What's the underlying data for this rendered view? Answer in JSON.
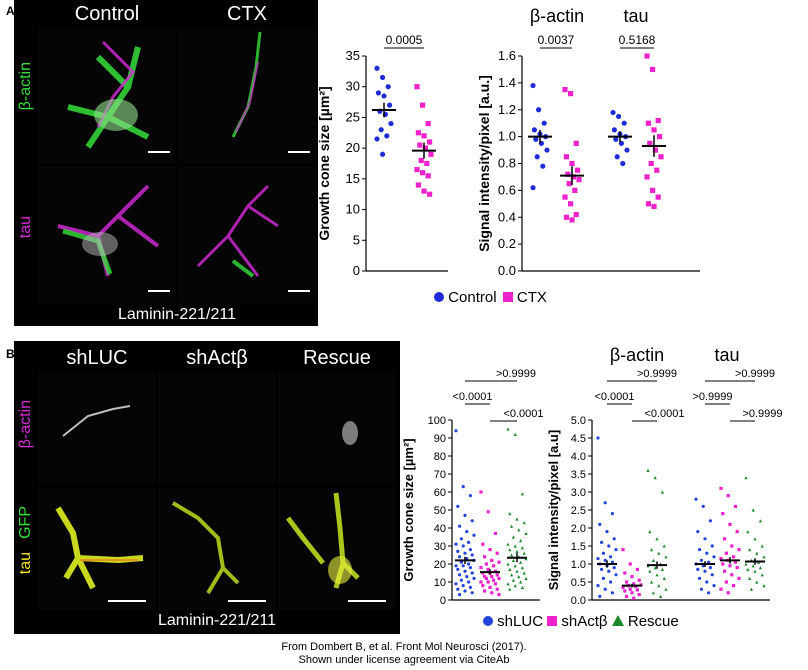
{
  "panel_a": {
    "letter": "A",
    "col_headers": [
      "Control",
      "CTX"
    ],
    "row_labels": [
      "β-actin",
      "tau"
    ],
    "caption": "Laminin-221/211"
  },
  "panel_b": {
    "letter": "B",
    "col_headers": [
      "shLUC",
      "shActβ",
      "Rescue"
    ],
    "row_label_top": "β-actin",
    "row_label_gfp": "GFP",
    "row_label_tau": "tau",
    "caption": "Laminin-221/211"
  },
  "legend_a": {
    "control": "Control",
    "ctx": "CTX"
  },
  "legend_b": {
    "shluc": "shLUC",
    "shact": "shActβ",
    "rescue": "Rescue"
  },
  "colors": {
    "control": "#1f2bd6",
    "ctx": "#ee22cc",
    "shluc": "#2244dd",
    "shact": "#ee22cc",
    "rescue": "#1d8a2a",
    "green": "#35e03a",
    "magenta": "#d52ad8"
  },
  "credit": {
    "line1": "From Dombert B, et al. Front Mol Neurosci (2017).",
    "line2": "Shown under license agreement via CiteAb"
  },
  "chart_data": [
    {
      "type": "scatter",
      "ylabel": "Growth cone size [µm²]",
      "ylim": [
        0,
        35
      ],
      "yticks": [
        0,
        5,
        10,
        15,
        20,
        25,
        30,
        35
      ],
      "categories": [
        "Control",
        "CTX"
      ],
      "series": [
        {
          "name": "Control",
          "values": [
            33,
            31.5,
            30,
            29,
            28.5,
            27,
            26,
            25.5,
            24,
            23,
            22,
            21.5,
            19
          ]
        },
        {
          "name": "CTX",
          "values": [
            30,
            27,
            24,
            22.5,
            22,
            21,
            20.5,
            20,
            19,
            18,
            17.5,
            16.5,
            16,
            15.5,
            14,
            13,
            12.5
          ]
        }
      ],
      "means": [
        26.2,
        19.6
      ],
      "sem": [
        1.2,
        1.3
      ],
      "annotations": [
        {
          "text": "0.0005",
          "between": [
            0,
            1
          ]
        }
      ]
    },
    {
      "type": "scatter",
      "ylabel": "Signal intensity/pixel [a.u.]",
      "ylim": [
        0,
        1.6
      ],
      "yticks": [
        0.0,
        0.2,
        0.4,
        0.6,
        0.8,
        1.0,
        1.2,
        1.4,
        1.6
      ],
      "groups": [
        "β-actin",
        "tau"
      ],
      "categories": [
        "Control",
        "CTX",
        "Control",
        "CTX"
      ],
      "series": [
        {
          "name": "Control",
          "values": [
            1.38,
            1.2,
            1.1,
            1.05,
            1.02,
            1.0,
            0.98,
            0.95,
            0.9,
            0.85,
            0.78,
            0.62
          ]
        },
        {
          "name": "CTX",
          "values": [
            1.35,
            1.32,
            0.95,
            0.85,
            0.8,
            0.75,
            0.72,
            0.7,
            0.68,
            0.65,
            0.6,
            0.55,
            0.5,
            0.42,
            0.4,
            0.38
          ]
        },
        {
          "name": "Control",
          "values": [
            1.18,
            1.15,
            1.1,
            1.05,
            1.02,
            1.0,
            0.98,
            0.95,
            0.9,
            0.85,
            0.8
          ]
        },
        {
          "name": "CTX",
          "values": [
            1.6,
            1.5,
            1.12,
            1.1,
            1.05,
            1.0,
            0.95,
            0.9,
            0.85,
            0.8,
            0.75,
            0.7,
            0.6,
            0.55,
            0.5,
            0.48
          ]
        }
      ],
      "means": [
        1.0,
        0.71,
        1.0,
        0.93
      ],
      "sem": [
        0.05,
        0.07,
        0.04,
        0.08
      ],
      "annotations": [
        {
          "text": "0.0037",
          "between": [
            0,
            1
          ]
        },
        {
          "text": "0.5168",
          "between": [
            2,
            3
          ]
        }
      ]
    },
    {
      "type": "scatter",
      "ylabel": "Growth cone size [µm²]",
      "ylim": [
        0,
        100
      ],
      "yticks": [
        0,
        10,
        20,
        30,
        40,
        50,
        60,
        70,
        80,
        90,
        100
      ],
      "categories": [
        "shLUC",
        "shActβ",
        "Rescue"
      ],
      "series": [
        {
          "name": "shLUC",
          "values": [
            94,
            63,
            58,
            52,
            47,
            44,
            41,
            38,
            36,
            34,
            32,
            31,
            30,
            28,
            27,
            26,
            25,
            24,
            23,
            22,
            21,
            20,
            19,
            19,
            18,
            17,
            16,
            15,
            14,
            13,
            12,
            11,
            10,
            9,
            8,
            7,
            6,
            5,
            4,
            3
          ]
        },
        {
          "name": "shActβ",
          "values": [
            60,
            49,
            37,
            31,
            28,
            26,
            24,
            22,
            21,
            20,
            19,
            18,
            17,
            16,
            15,
            15,
            14,
            13,
            13,
            12,
            12,
            11,
            10,
            10,
            9,
            8,
            7,
            6,
            5,
            4,
            3
          ]
        },
        {
          "name": "Rescue",
          "values": [
            95,
            92,
            59,
            48,
            45,
            43,
            41,
            39,
            37,
            35,
            33,
            31,
            30,
            29,
            28,
            27,
            26,
            25,
            24,
            23,
            22,
            21,
            20,
            19,
            18,
            17,
            16,
            15,
            14,
            13,
            12,
            11,
            10,
            9,
            8,
            7,
            6
          ]
        }
      ],
      "means": [
        22,
        15.5,
        23.5
      ],
      "sem": [
        2.0,
        1.5,
        2.5
      ],
      "annotations": [
        {
          "text": ">0.9999",
          "between": [
            0,
            2
          ]
        },
        {
          "text": "<0.0001",
          "between": [
            0,
            1
          ]
        },
        {
          "text": "<0.0001",
          "between": [
            1,
            2
          ]
        }
      ]
    },
    {
      "type": "scatter",
      "ylabel": "Signal intensity/pixel [a.u]",
      "ylim": [
        0,
        5
      ],
      "yticks": [
        0.0,
        0.5,
        1.0,
        1.5,
        2.0,
        2.5,
        3.0,
        3.5,
        4.0,
        4.5,
        5.0
      ],
      "groups": [
        "β-actin",
        "tau"
      ],
      "categories": [
        "shLUC",
        "shActβ",
        "Rescue",
        "shLUC",
        "shActβ",
        "Rescue"
      ],
      "series": [
        {
          "name": "shLUC",
          "values": [
            4.5,
            2.7,
            2.4,
            2.1,
            1.9,
            1.7,
            1.6,
            1.5,
            1.4,
            1.3,
            1.2,
            1.15,
            1.1,
            1.05,
            1.0,
            0.95,
            0.9,
            0.85,
            0.8,
            0.7,
            0.6,
            0.5,
            0.4,
            0.3,
            0.2,
            0.1
          ]
        },
        {
          "name": "shActβ",
          "values": [
            1.4,
            1.0,
            0.85,
            0.75,
            0.65,
            0.55,
            0.5,
            0.45,
            0.42,
            0.4,
            0.38,
            0.35,
            0.3,
            0.28,
            0.25,
            0.2,
            0.15,
            0.1,
            0.05
          ]
        },
        {
          "name": "Rescue",
          "values": [
            3.6,
            3.4,
            3.0,
            1.9,
            1.7,
            1.5,
            1.4,
            1.3,
            1.2,
            1.1,
            1.0,
            0.95,
            0.9,
            0.85,
            0.8,
            0.7,
            0.6,
            0.5,
            0.4,
            0.3,
            0.2,
            0.1
          ]
        },
        {
          "name": "shLUC",
          "values": [
            2.8,
            2.6,
            2.2,
            1.9,
            1.7,
            1.5,
            1.4,
            1.3,
            1.2,
            1.1,
            1.05,
            1.0,
            0.95,
            0.9,
            0.85,
            0.8,
            0.7,
            0.6,
            0.5,
            0.4,
            0.3,
            0.2
          ]
        },
        {
          "name": "shActβ",
          "values": [
            3.1,
            2.9,
            2.6,
            2.4,
            2.1,
            1.9,
            1.7,
            1.5,
            1.4,
            1.3,
            1.2,
            1.15,
            1.1,
            1.05,
            1.0,
            0.95,
            0.9,
            0.8,
            0.7,
            0.6,
            0.5,
            0.4,
            0.3,
            0.2
          ]
        },
        {
          "name": "Rescue",
          "values": [
            3.4,
            2.5,
            2.2,
            1.9,
            1.7,
            1.5,
            1.4,
            1.3,
            1.2,
            1.1,
            1.05,
            1.0,
            0.95,
            0.9,
            0.85,
            0.8,
            0.7,
            0.6,
            0.5,
            0.4,
            0.3
          ]
        }
      ],
      "means": [
        1.0,
        0.4,
        0.97,
        1.0,
        1.1,
        1.07
      ],
      "sem": [
        0.1,
        0.05,
        0.1,
        0.08,
        0.09,
        0.09
      ],
      "annotations": [
        {
          "text": ">0.9999",
          "between": [
            0,
            2
          ]
        },
        {
          "text": "<0.0001",
          "between": [
            0,
            1
          ]
        },
        {
          "text": "<0.0001",
          "between": [
            1,
            2
          ]
        },
        {
          "text": ">0.9999",
          "between": [
            3,
            5
          ]
        },
        {
          "text": ">0.9999",
          "between": [
            3,
            4
          ]
        },
        {
          "text": ">0.9999",
          "between": [
            4,
            5
          ]
        }
      ]
    }
  ]
}
